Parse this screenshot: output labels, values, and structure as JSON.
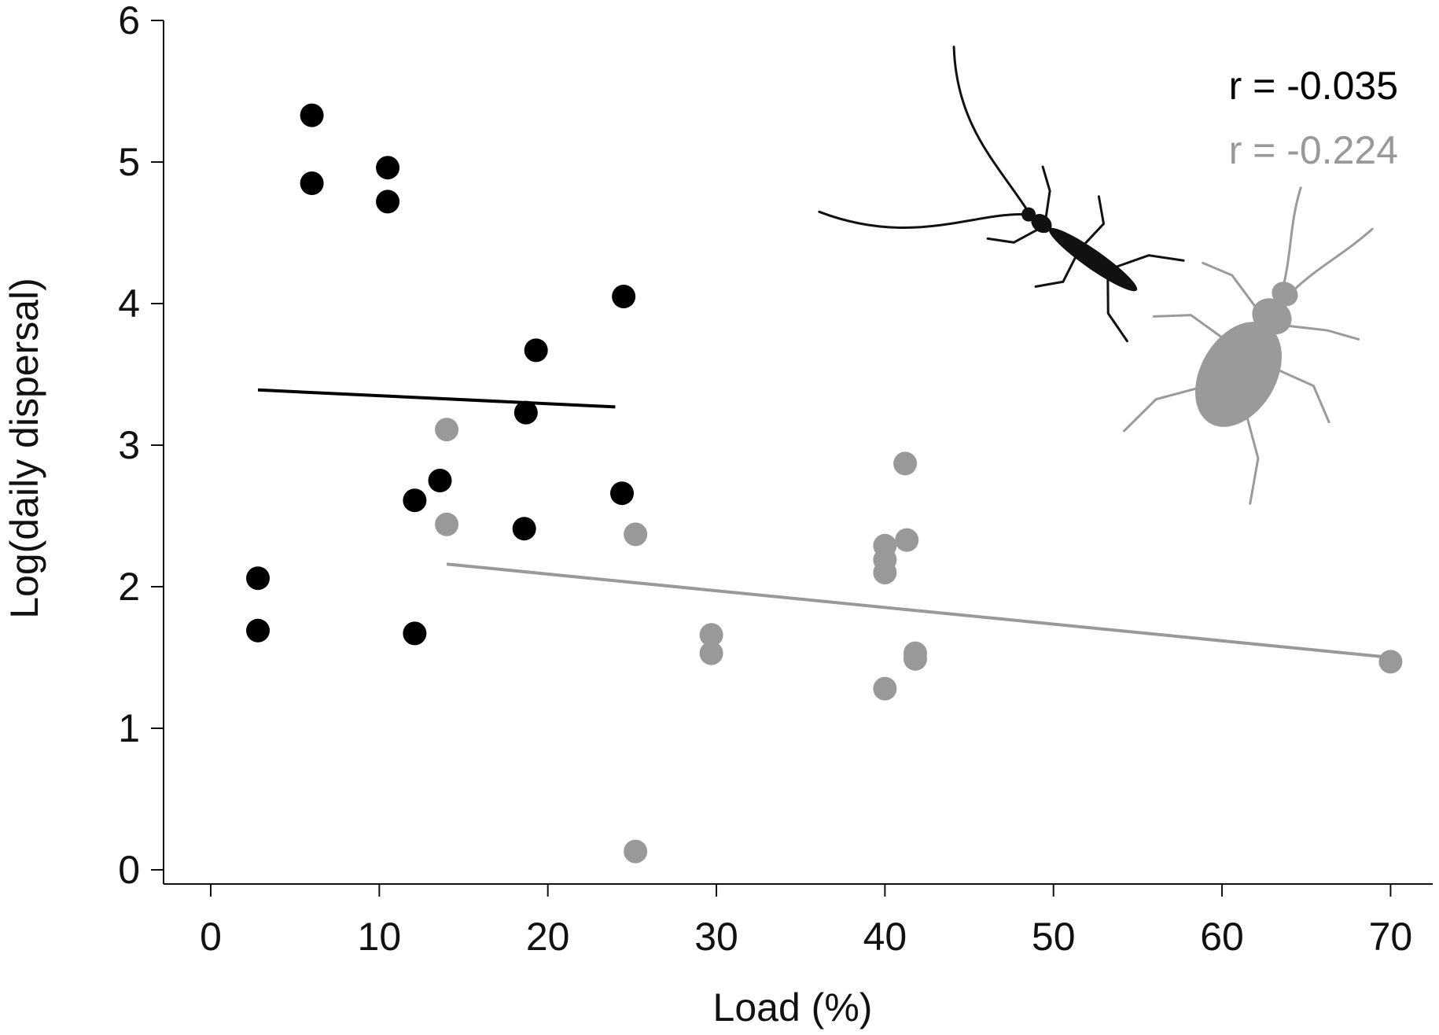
{
  "chart_data": {
    "type": "scatter",
    "title": "",
    "xlabel": "Load (%)",
    "ylabel": "Log(daily dispersal)",
    "xlim": [
      -2.8,
      72.5
    ],
    "ylim": [
      -0.1,
      6.0
    ],
    "xticks": [
      0,
      10,
      20,
      30,
      40,
      50,
      60,
      70
    ],
    "yticks": [
      0,
      1,
      2,
      3,
      4,
      5,
      6
    ],
    "grid": false,
    "legend": "none",
    "series": [
      {
        "color": "#000000",
        "points": [
          {
            "x": 6,
            "y": 5.33
          },
          {
            "x": 6,
            "y": 4.85
          },
          {
            "x": 10.5,
            "y": 4.96
          },
          {
            "x": 10.5,
            "y": 4.72
          },
          {
            "x": 24.5,
            "y": 4.05
          },
          {
            "x": 19.3,
            "y": 3.67
          },
          {
            "x": 18.7,
            "y": 3.23
          },
          {
            "x": 13.6,
            "y": 2.75
          },
          {
            "x": 12.1,
            "y": 2.61
          },
          {
            "x": 24.4,
            "y": 2.66
          },
          {
            "x": 18.6,
            "y": 2.41
          },
          {
            "x": 2.8,
            "y": 2.06
          },
          {
            "x": 2.8,
            "y": 1.69
          },
          {
            "x": 12.1,
            "y": 1.67
          }
        ],
        "trend": {
          "x": [
            2.8,
            24.0
          ],
          "y": [
            3.39,
            3.27
          ]
        },
        "annotation": "r = -0.035"
      },
      {
        "color": "#999999",
        "points": [
          {
            "x": 14.0,
            "y": 3.11
          },
          {
            "x": 14.0,
            "y": 2.44
          },
          {
            "x": 25.2,
            "y": 2.37
          },
          {
            "x": 25.2,
            "y": 0.13
          },
          {
            "x": 29.7,
            "y": 1.66
          },
          {
            "x": 29.7,
            "y": 1.53
          },
          {
            "x": 41.2,
            "y": 2.87
          },
          {
            "x": 41.3,
            "y": 2.33
          },
          {
            "x": 40.0,
            "y": 2.29
          },
          {
            "x": 40.0,
            "y": 2.19
          },
          {
            "x": 40.0,
            "y": 2.1
          },
          {
            "x": 41.8,
            "y": 1.53
          },
          {
            "x": 41.8,
            "y": 1.49
          },
          {
            "x": 40.0,
            "y": 1.28
          },
          {
            "x": 70.0,
            "y": 1.47
          }
        ],
        "trend": {
          "x": [
            14.0,
            70.0
          ],
          "y": [
            2.16,
            1.5
          ]
        },
        "annotation": "r = -0.224"
      }
    ],
    "colors": {
      "axis": "#111111",
      "black_series": "#000000",
      "grey_series": "#999999"
    },
    "icons": [
      "longhorn-beetle-silhouette",
      "ground-beetle-silhouette"
    ]
  }
}
